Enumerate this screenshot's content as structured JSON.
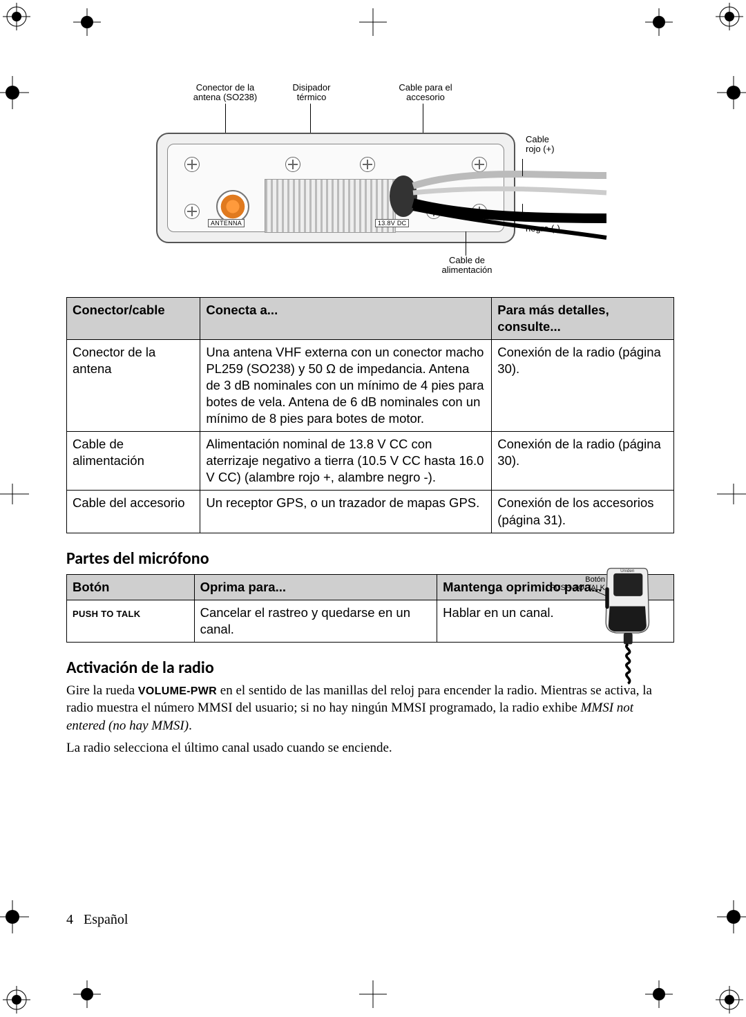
{
  "diagram": {
    "callouts": {
      "antenna_conn": "Conector de la\nantena (SO238)",
      "heatsink": "Disipador\ntérmico",
      "accessory_cable": "Cable para el\naccesorio",
      "red_cable": "Cable\nrojo (+)",
      "black_cable": "Cable\nnegro (-)",
      "power_cable": "Cable de\nalimentación"
    },
    "labels": {
      "antenna_box": "ANTENNA",
      "voltage_box": "13.8V DC"
    },
    "colors": {
      "body_border": "#555555",
      "body_fill": "#f0f0f0",
      "antenna_center": "#ff9a3c",
      "heatsink_light": "#eeeeee",
      "heatsink_dark": "#bbbbbb",
      "red_wire": "#aaaaaa",
      "black_wire": "#000000"
    }
  },
  "table1": {
    "headers": [
      "Conector/cable",
      "Conecta a...",
      "Para más detalles, consulte..."
    ],
    "rows": [
      [
        "Conector de la antena",
        "Una antena VHF externa con un conector macho PL259 (SO238) y 50 Ω de impedancia. Antena de 3 dB nominales con un mínimo de 4 pies para botes de vela. Antena de 6 dB nominales con un mínimo de 8 pies para botes de motor.",
        "Conexión de la radio (página 30)."
      ],
      [
        "Cable de alimentación",
        "Alimentación nominal de 13.8 V CC con aterrizaje negativo a tierra (10.5 V CC hasta 16.0 V CC) (alambre rojo +, alambre negro -).",
        "Conexión de la radio (página 30)."
      ],
      [
        "Cable del accesorio",
        "Un receptor GPS, o un trazador de mapas GPS.",
        "Conexión de los accesorios (página 31)."
      ]
    ],
    "col_widths": [
      "22%",
      "48%",
      "30%"
    ],
    "header_bg": "#cfcfcf"
  },
  "section_mic_title": "Partes del micrófono",
  "table2": {
    "headers": [
      "Botón",
      "Oprima para...",
      "Mantenga oprimido para..."
    ],
    "rows": [
      [
        "PUSH TO TALK",
        "Cancelar el rastreo y quedarse en un canal.",
        "Hablar en un canal."
      ]
    ],
    "col_widths": [
      "21%",
      "40%",
      "39%"
    ]
  },
  "mic": {
    "label": "Botón\nPUSH-TO-TALK",
    "brand": "Uniden"
  },
  "section_activation_title": "Activación de la radio",
  "activation_paragraph_1_pre": "Gire la rueda ",
  "activation_paragraph_1_sc": "VOLUME-PWR",
  "activation_paragraph_1_mid": " en el sentido de las manillas del reloj para encender la radio. Mientras se activa, la radio muestra el número MMSI del usuario; si no hay ningún MMSI programado, la radio exhibe ",
  "activation_paragraph_1_em": "MMSI not entered (no hay MMSI)",
  "activation_paragraph_1_end": ".",
  "activation_paragraph_2": "La radio selecciona el último canal usado cuando se enciende.",
  "footer": {
    "page": "4",
    "lang": "Español"
  }
}
